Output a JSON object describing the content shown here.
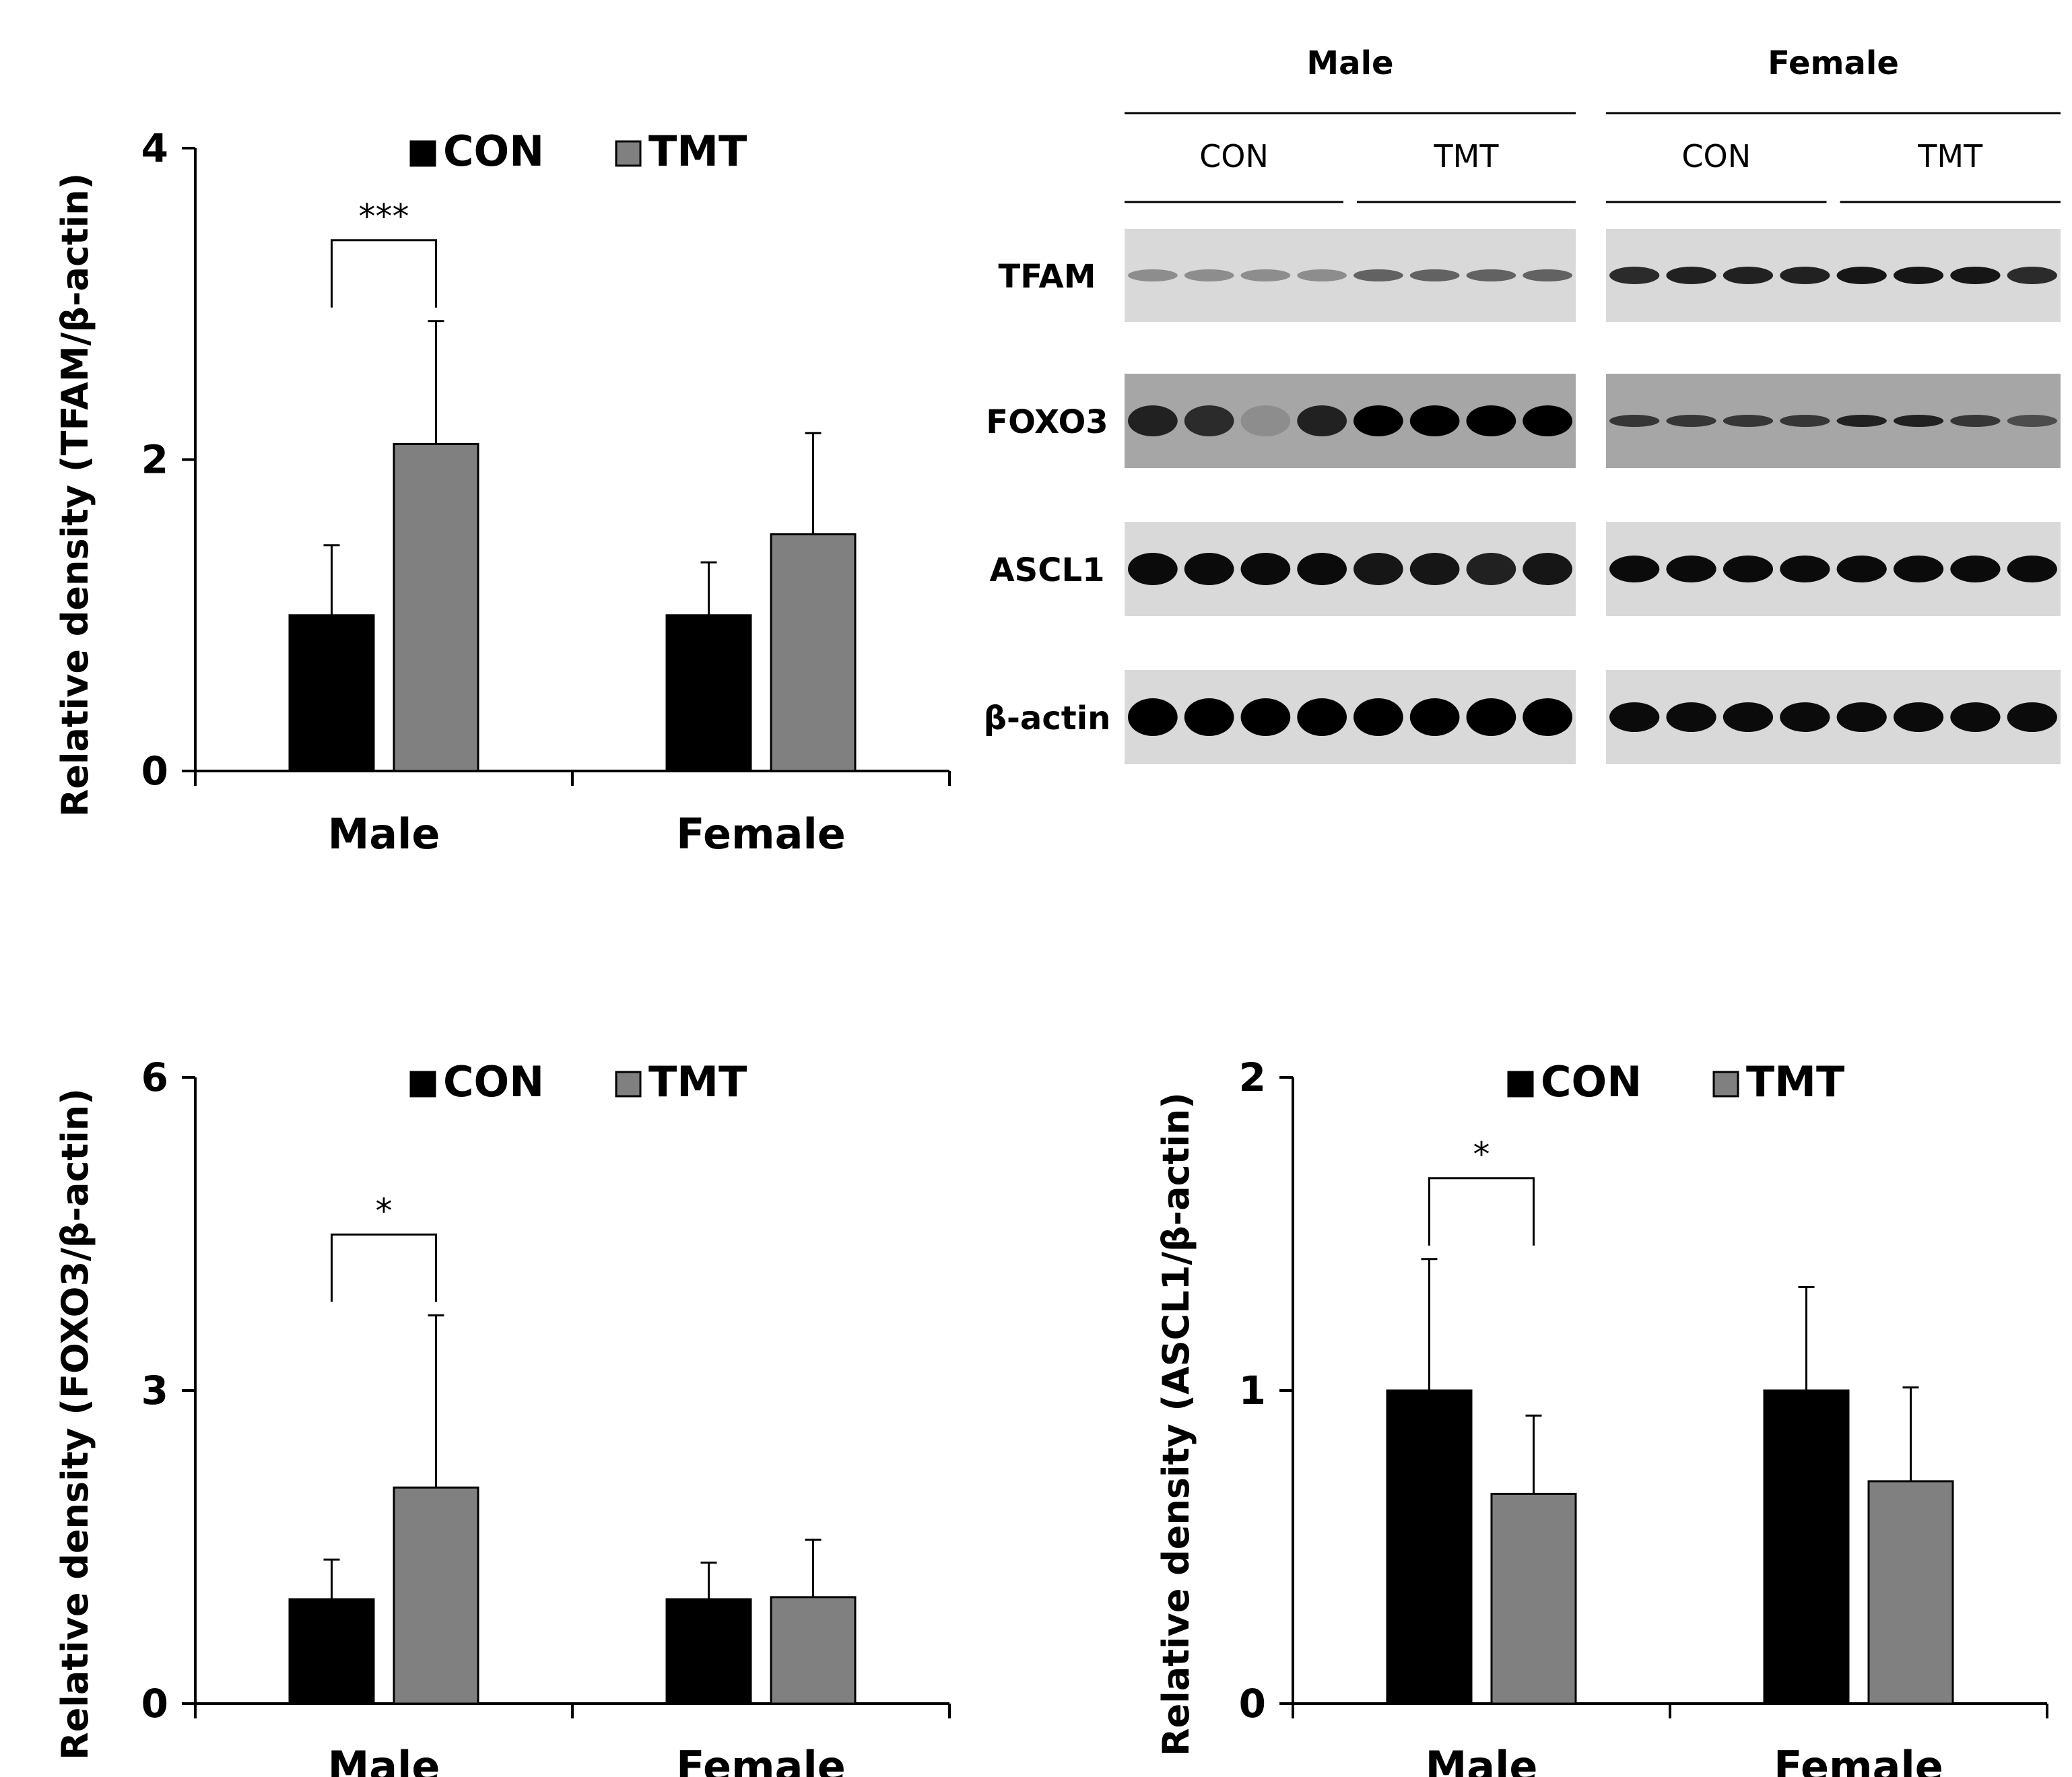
{
  "chart_data": [
    {
      "type": "bar",
      "title": "",
      "categories": [
        "Male",
        "Female"
      ],
      "series": [
        {
          "name": "CON",
          "color": "#000000",
          "values": [
            1.0,
            1.0
          ],
          "errors": [
            0.45,
            0.34
          ]
        },
        {
          "name": "TMT",
          "color": "#808080",
          "values": [
            2.1,
            1.52
          ],
          "errors": [
            0.79,
            0.65
          ]
        }
      ],
      "xlabel": "",
      "ylabel": "Relative density (TFAM/β-actin)",
      "ylim": [
        0,
        4
      ],
      "yticks": [
        0,
        2,
        4
      ],
      "grid": false,
      "legend": "top-center",
      "significance": [
        {
          "category": "Male",
          "label": "***"
        }
      ]
    },
    {
      "type": "bar",
      "title": "",
      "categories": [
        "Male",
        "Female"
      ],
      "series": [
        {
          "name": "CON",
          "color": "#000000",
          "values": [
            1.0,
            1.0
          ],
          "errors": [
            0.38,
            0.35
          ]
        },
        {
          "name": "TMT",
          "color": "#808080",
          "values": [
            2.07,
            1.02
          ],
          "errors": [
            1.65,
            0.55
          ]
        }
      ],
      "xlabel": "",
      "ylabel": "Relative density (FOXO3/β-actin)",
      "ylim": [
        0,
        6
      ],
      "yticks": [
        0,
        3,
        6
      ],
      "grid": false,
      "legend": "top-center",
      "significance": [
        {
          "category": "Male",
          "label": "*"
        }
      ]
    },
    {
      "type": "bar",
      "title": "",
      "categories": [
        "Male",
        "Female"
      ],
      "series": [
        {
          "name": "CON",
          "color": "#000000",
          "values": [
            1.0,
            1.0
          ],
          "errors": [
            0.42,
            0.33
          ]
        },
        {
          "name": "TMT",
          "color": "#808080",
          "values": [
            0.67,
            0.71
          ],
          "errors": [
            0.25,
            0.3
          ]
        }
      ],
      "xlabel": "",
      "ylabel": "Relative density (ASCL1/β-actin)",
      "ylim": [
        0,
        2
      ],
      "yticks": [
        0,
        1,
        2
      ],
      "grid": false,
      "legend": "top-center",
      "significance": [
        {
          "category": "Male",
          "label": "*"
        }
      ]
    }
  ],
  "blot": {
    "sexes": [
      "Male",
      "Female"
    ],
    "groups": [
      "CON",
      "TMT"
    ],
    "proteins": [
      "TFAM",
      "FOXO3",
      "ASCL1",
      "β-actin"
    ],
    "lanes_per_group": 4
  },
  "colors": {
    "con": "#000000",
    "tmt": "#808080",
    "axis": "#000000",
    "membrane_light": "#d9d9d9",
    "membrane_dark": "#a6a6a6"
  }
}
